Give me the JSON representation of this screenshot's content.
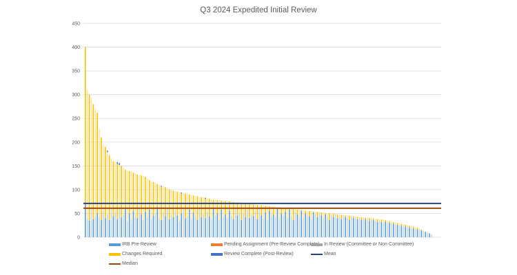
{
  "chart_data": {
    "type": "bar",
    "stacked": true,
    "title": "Q3 2024 Expedited Initial Review",
    "xlabel": "",
    "ylabel": "",
    "ylim": [
      0,
      450
    ],
    "yticks": [
      0,
      50,
      100,
      150,
      200,
      250,
      300,
      350,
      400,
      450
    ],
    "grid": true,
    "legend_position": "bottom",
    "colors": {
      "irb_pre_review": "#5B9BD5",
      "pending_assignment": "#ED7D31",
      "in_review": "#A5A5A5",
      "changes_required": "#FFC000",
      "review_complete": "#4472C4",
      "mean": "#264478",
      "median": "#9E480E"
    },
    "legend": [
      {
        "key": "irb_pre_review",
        "label": "IRB Pre-Review",
        "kind": "box"
      },
      {
        "key": "pending_assignment",
        "label": "Pending Assignment (Pre-Review Complete)",
        "kind": "box"
      },
      {
        "key": "in_review",
        "label": "In Review (Committee or Non-Committee)",
        "kind": "box"
      },
      {
        "key": "changes_required",
        "label": "Changes Required",
        "kind": "box"
      },
      {
        "key": "review_complete",
        "label": "Review Complete (Post-Review)",
        "kind": "box"
      },
      {
        "key": "mean",
        "label": "Mean",
        "kind": "line"
      },
      {
        "key": "median",
        "label": "Median",
        "kind": "line"
      }
    ],
    "mean": 71,
    "median": 61,
    "totals": [
      400,
      310,
      300,
      292,
      280,
      270,
      262,
      228,
      210,
      196,
      190,
      182,
      172,
      165,
      160,
      159,
      158,
      156,
      150,
      145,
      142,
      140,
      139,
      138,
      136,
      134,
      132,
      131,
      130,
      129,
      127,
      124,
      120,
      118,
      116,
      114,
      112,
      110,
      108,
      107,
      105,
      103,
      101,
      99,
      98,
      97,
      96,
      95,
      94,
      93,
      92,
      91,
      90,
      89,
      88,
      87,
      86,
      85,
      84,
      84,
      83,
      82,
      81,
      80,
      79,
      79,
      78,
      78,
      77,
      77,
      76,
      76,
      75,
      75,
      74,
      74,
      73,
      73,
      72,
      72,
      71,
      71,
      70,
      70,
      69,
      69,
      68,
      68,
      67,
      67,
      66,
      66,
      65,
      65,
      64,
      64,
      63,
      63,
      62,
      62,
      61,
      61,
      60,
      60,
      59,
      59,
      58,
      58,
      57,
      57,
      56,
      56,
      55,
      55,
      54,
      54,
      53,
      53,
      52,
      52,
      51,
      51,
      50,
      50,
      49,
      49,
      48,
      48,
      47,
      47,
      46,
      46,
      45,
      45,
      44,
      44,
      43,
      43,
      42,
      42,
      41,
      41,
      40,
      40,
      39,
      39,
      38,
      38,
      37,
      37,
      36,
      35,
      34,
      33,
      32,
      31,
      30,
      29,
      28,
      27,
      26,
      25,
      24,
      23,
      22,
      21,
      20,
      18,
      16,
      14,
      12,
      10,
      8,
      6
    ],
    "irb_pre_review": [
      70,
      40,
      35,
      60,
      38,
      45,
      50,
      42,
      36,
      55,
      40,
      48,
      36,
      62,
      44,
      52,
      38,
      58,
      42,
      46,
      60,
      34,
      50,
      38,
      56,
      44,
      40,
      62,
      48,
      36,
      54,
      42,
      58,
      38,
      46,
      50,
      64,
      40,
      36,
      52,
      44,
      60,
      38,
      48,
      42,
      56,
      46,
      34,
      50,
      62,
      40,
      44,
      58,
      38,
      52,
      46,
      36,
      60,
      42,
      48,
      40,
      54,
      44,
      38,
      62,
      46,
      50,
      36,
      58,
      42,
      48,
      40,
      56,
      44,
      38,
      60,
      46,
      52,
      36,
      50,
      42,
      58,
      40,
      48,
      44,
      54,
      38,
      62,
      46,
      40,
      52,
      36,
      56,
      44,
      48,
      42,
      60,
      38,
      50,
      46,
      54,
      40,
      58,
      44,
      36,
      52,
      48,
      42,
      56,
      40,
      50,
      46,
      44,
      38,
      52,
      48,
      42,
      50,
      46,
      40,
      48,
      44,
      36,
      46,
      42,
      48,
      40,
      44,
      38,
      46,
      42,
      40,
      36,
      44,
      40,
      42,
      38,
      40,
      36,
      40,
      38,
      36,
      34,
      38,
      36,
      34,
      32,
      34,
      32,
      30,
      33,
      31,
      30,
      29,
      28,
      27,
      26,
      25,
      24,
      23,
      22,
      21,
      20,
      19,
      18,
      17,
      16,
      15,
      14,
      12,
      11,
      10,
      8,
      6
    ],
    "in_review_caps": [
      0,
      0,
      0,
      0,
      0,
      0,
      0,
      0,
      0,
      0,
      0,
      3,
      0,
      0,
      0,
      0,
      4,
      4,
      0,
      0,
      0,
      0,
      0,
      0,
      0,
      0,
      0,
      0,
      0,
      0,
      0,
      0,
      0,
      0,
      0,
      0,
      0,
      0,
      2,
      0,
      0,
      0,
      0,
      0,
      0,
      0,
      0,
      0,
      2,
      0,
      0,
      0,
      0,
      0,
      0,
      0,
      0,
      0,
      0,
      0,
      2,
      0,
      0,
      0,
      0,
      0,
      0,
      0,
      0,
      0,
      0,
      0,
      0,
      0,
      0,
      0,
      0,
      0,
      0,
      0,
      0,
      0,
      0,
      0,
      0,
      0,
      0,
      0,
      0,
      0,
      0,
      0,
      0,
      0,
      0,
      0,
      0,
      0,
      0,
      0,
      0,
      0,
      0,
      0,
      0,
      0,
      0,
      0,
      0,
      0,
      0,
      0,
      0,
      0,
      0,
      0,
      0,
      0,
      0,
      0,
      0,
      0,
      0,
      0,
      0,
      0,
      0,
      0,
      0,
      0,
      0,
      0,
      0,
      0,
      0,
      0,
      0,
      0,
      0,
      0,
      0,
      0,
      0,
      0,
      0,
      0,
      0,
      0,
      0,
      0,
      0,
      0,
      0,
      0,
      0,
      0,
      0,
      0,
      0,
      0,
      0,
      0,
      0,
      0,
      0,
      0,
      0,
      0,
      0,
      0,
      0,
      0,
      0,
      0
    ]
  }
}
